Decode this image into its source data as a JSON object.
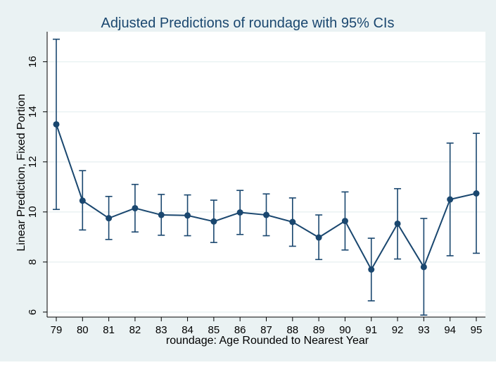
{
  "colors": {
    "outer_background": "#eaf2f3",
    "plot_background": "#ffffff",
    "series": "#1a476f",
    "title": "#1a476f",
    "grid": "#eaf2f3",
    "text": "#000000"
  },
  "chart_data": {
    "type": "line",
    "title": "Adjusted Predictions of roundage with 95% CIs",
    "xlabel": "roundage: Age Rounded to Nearest Year",
    "ylabel": "Linear Prediction, Fixed Portion",
    "ylim": [
      5.8,
      17.2
    ],
    "y_ticks": [
      6,
      8,
      10,
      12,
      14,
      16
    ],
    "grid": true,
    "legend": "none",
    "x": [
      79,
      80,
      81,
      82,
      83,
      84,
      85,
      86,
      87,
      88,
      89,
      90,
      91,
      92,
      93,
      94,
      95
    ],
    "x_tick_labels": [
      "79",
      "80",
      "81",
      "82",
      "83",
      "84",
      "85",
      "86",
      "87",
      "88",
      "89",
      "90",
      "91",
      "92",
      "93",
      "94",
      "95"
    ],
    "series": [
      {
        "values": [
          13.5,
          10.45,
          9.75,
          10.15,
          9.88,
          9.86,
          9.62,
          9.98,
          9.88,
          9.6,
          8.98,
          9.64,
          7.7,
          9.53,
          7.8,
          10.5,
          10.74
        ],
        "ci_lower": [
          10.1,
          9.28,
          8.9,
          9.2,
          9.07,
          9.05,
          8.78,
          9.1,
          9.05,
          8.63,
          8.1,
          8.48,
          6.45,
          8.12,
          5.88,
          8.25,
          8.35
        ],
        "ci_upper": [
          16.9,
          11.65,
          10.62,
          11.1,
          10.7,
          10.68,
          10.47,
          10.86,
          10.72,
          10.56,
          9.88,
          10.8,
          8.95,
          10.93,
          9.74,
          12.75,
          13.14
        ]
      }
    ]
  }
}
